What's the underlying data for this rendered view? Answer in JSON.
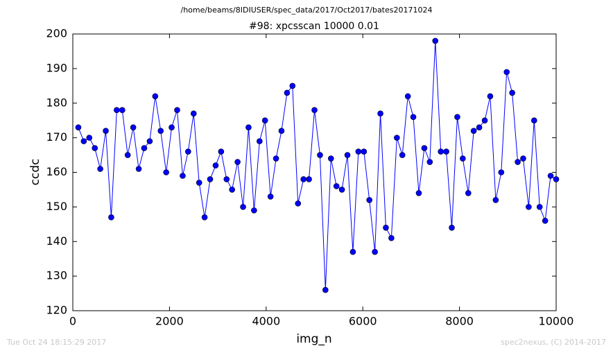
{
  "chart_data": {
    "type": "line",
    "suptitle": "/home/beams/8IDIUSER/spec_data/2017/Oct2017/bates20171024",
    "title": "#98: xpcsscan 10000 0.01",
    "xlabel": "img_n",
    "ylabel": "ccdc",
    "color": "#0000ff",
    "x": [
      114,
      227,
      341,
      455,
      568,
      682,
      795,
      909,
      1023,
      1136,
      1250,
      1364,
      1477,
      1591,
      1705,
      1818,
      1932,
      2045,
      2159,
      2273,
      2386,
      2500,
      2614,
      2727,
      2841,
      2955,
      3068,
      3182,
      3295,
      3409,
      3523,
      3636,
      3750,
      3864,
      3977,
      4091,
      4205,
      4318,
      4432,
      4545,
      4659,
      4773,
      4886,
      5000,
      5114,
      5227,
      5341,
      5455,
      5568,
      5682,
      5795,
      5909,
      6023,
      6136,
      6250,
      6364,
      6477,
      6591,
      6705,
      6818,
      6932,
      7045,
      7159,
      7273,
      7386,
      7500,
      7614,
      7727,
      7841,
      7955,
      8068,
      8182,
      8295,
      8409,
      8523,
      8636,
      8750,
      8864,
      8977,
      9091,
      9205,
      9318,
      9432,
      9545,
      9659,
      9773,
      9886,
      10000
    ],
    "values": [
      173,
      169,
      170,
      167,
      161,
      172,
      147,
      178,
      178,
      165,
      173,
      161,
      167,
      169,
      182,
      172,
      160,
      173,
      178,
      159,
      166,
      177,
      157,
      147,
      158,
      162,
      166,
      158,
      155,
      163,
      150,
      173,
      149,
      169,
      175,
      153,
      164,
      172,
      183,
      185,
      151,
      158,
      158,
      178,
      165,
      126,
      164,
      156,
      155,
      165,
      137,
      166,
      166,
      152,
      137,
      177,
      144,
      141,
      170,
      165,
      182,
      176,
      154,
      167,
      163,
      198,
      166,
      166,
      144,
      176,
      164,
      154,
      172,
      173,
      175,
      182,
      152,
      160,
      189,
      183,
      163,
      164,
      150,
      175,
      150,
      146,
      159,
      158
    ],
    "xlim": [
      0,
      10000
    ],
    "ylim": [
      120,
      200
    ],
    "xticks": [
      0,
      2000,
      4000,
      6000,
      8000,
      10000
    ],
    "yticks": [
      120,
      130,
      140,
      150,
      160,
      170,
      180,
      190,
      200
    ]
  },
  "footer": {
    "timestamp": "Tue Oct 24 18:15:29 2017",
    "credit": "spec2nexus, (C) 2014-2017"
  }
}
